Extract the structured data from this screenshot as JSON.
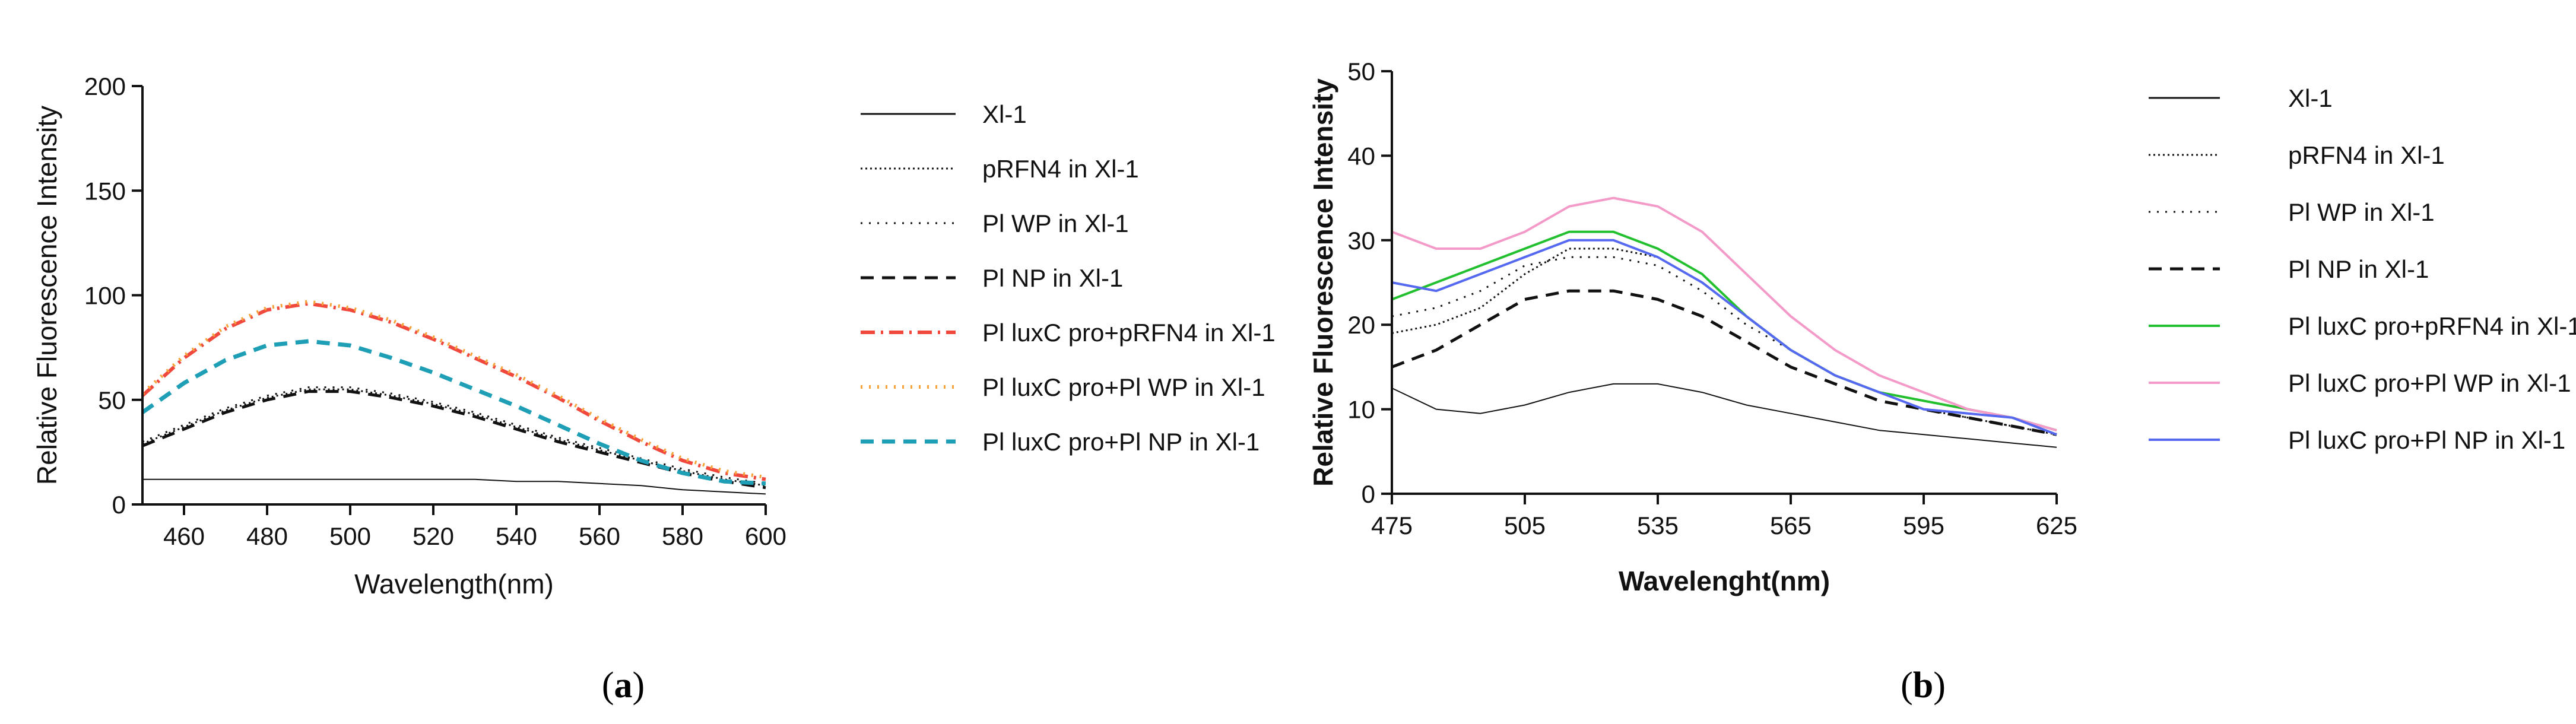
{
  "chart_data": [
    {
      "type": "line",
      "id": "a",
      "caption": {
        "open": "(",
        "letter": "a",
        "close": ")"
      },
      "title": "",
      "xlabel": "Wavelength(nm)",
      "ylabel": "Relative Fluorescence Intensity",
      "xlim": [
        450,
        600
      ],
      "ylim": [
        0,
        200
      ],
      "xticks": [
        460,
        480,
        500,
        520,
        540,
        560,
        580,
        600
      ],
      "yticks": [
        0,
        50,
        100,
        150,
        200
      ],
      "xlabel_bold": false,
      "x": [
        450,
        460,
        470,
        480,
        490,
        500,
        510,
        520,
        530,
        540,
        550,
        560,
        570,
        580,
        590,
        600
      ],
      "series": [
        {
          "name": "Xl-1",
          "color": "#111111",
          "dash": "solid",
          "width": 2,
          "values": [
            12,
            12,
            12,
            12,
            12,
            12,
            12,
            12,
            12,
            11,
            11,
            10,
            9,
            7,
            6,
            5
          ]
        },
        {
          "name": "pRFN4 in Xl-1",
          "color": "#111111",
          "dash": "dense-dot",
          "width": 3,
          "values": [
            29,
            37,
            45,
            51,
            55,
            55,
            52,
            48,
            43,
            37,
            31,
            26,
            21,
            16,
            12,
            9
          ]
        },
        {
          "name": "Pl WP in Xl-1",
          "color": "#111111",
          "dash": "dot",
          "width": 3,
          "values": [
            30,
            38,
            46,
            52,
            56,
            56,
            53,
            49,
            44,
            38,
            32,
            27,
            22,
            17,
            13,
            10
          ]
        },
        {
          "name": "Pl NP in Xl-1",
          "color": "#111111",
          "dash": "dash",
          "width": 5,
          "values": [
            28,
            36,
            44,
            50,
            54,
            54,
            51,
            47,
            42,
            36,
            30,
            25,
            20,
            15,
            11,
            8
          ]
        },
        {
          "name": "Pl luxC pro+pRFN4 in Xl-1",
          "color": "#f0483c",
          "dash": "dashdot",
          "width": 6,
          "values": [
            52,
            70,
            84,
            93,
            96,
            93,
            87,
            79,
            70,
            61,
            51,
            40,
            30,
            21,
            15,
            12
          ]
        },
        {
          "name": "Pl luxC pro+Pl WP in Xl-1",
          "color": "#f5a33a",
          "dash": "dot",
          "width": 6,
          "values": [
            53,
            71,
            85,
            94,
            97,
            94,
            88,
            80,
            71,
            62,
            52,
            41,
            31,
            22,
            16,
            13
          ]
        },
        {
          "name": "Pl luxC pro+Pl NP in Xl-1",
          "color": "#1f9fb6",
          "dash": "dash",
          "width": 7,
          "values": [
            44,
            58,
            69,
            76,
            78,
            76,
            70,
            63,
            55,
            47,
            38,
            29,
            21,
            15,
            11,
            10
          ]
        }
      ]
    },
    {
      "type": "line",
      "id": "b",
      "caption": {
        "open": "(",
        "letter": "b",
        "close": ")"
      },
      "title": "",
      "xlabel": "Wavelenght(nm)",
      "ylabel": "Relative Fluorescence Intensity",
      "xlim": [
        475,
        625
      ],
      "ylim": [
        0,
        50
      ],
      "xticks": [
        475,
        505,
        535,
        565,
        595,
        625
      ],
      "yticks": [
        0,
        10,
        20,
        30,
        40,
        50
      ],
      "xlabel_bold": true,
      "x": [
        475,
        485,
        495,
        505,
        515,
        525,
        535,
        545,
        555,
        565,
        575,
        585,
        595,
        605,
        615,
        625
      ],
      "series": [
        {
          "name": "Xl-1",
          "color": "#111111",
          "dash": "solid",
          "width": 2,
          "values": [
            12.5,
            10,
            9.5,
            10.5,
            12,
            13,
            13,
            12,
            10.5,
            9.5,
            8.5,
            7.5,
            7,
            6.5,
            6,
            5.5
          ]
        },
        {
          "name": "pRFN4 in Xl-1",
          "color": "#111111",
          "dash": "dense-dot",
          "width": 3,
          "values": [
            19,
            20,
            22,
            26,
            29,
            29,
            28,
            25,
            21,
            17,
            14,
            12,
            10,
            9,
            8,
            7
          ]
        },
        {
          "name": "Pl WP in Xl-1",
          "color": "#111111",
          "dash": "dot",
          "width": 3,
          "values": [
            21,
            22,
            24,
            27,
            28,
            28,
            27,
            24,
            20,
            17,
            14,
            12,
            10,
            9,
            8,
            7
          ]
        },
        {
          "name": "Pl NP in Xl-1",
          "color": "#111111",
          "dash": "dash",
          "width": 5,
          "values": [
            15,
            17,
            20,
            23,
            24,
            24,
            23,
            21,
            18,
            15,
            13,
            11,
            10,
            9,
            8,
            7
          ]
        },
        {
          "name": "Pl luxC pro+pRFN4 in Xl-1",
          "color": "#22c02e",
          "dash": "solid",
          "width": 4,
          "values": [
            23,
            25,
            27,
            29,
            31,
            31,
            29,
            26,
            21,
            17,
            14,
            12,
            11,
            10,
            9,
            7.5
          ]
        },
        {
          "name": "Pl luxC pro+Pl WP in Xl-1",
          "color": "#f49ac8",
          "dash": "solid",
          "width": 4,
          "values": [
            31,
            29,
            29,
            31,
            34,
            35,
            34,
            31,
            26,
            21,
            17,
            14,
            12,
            10,
            9,
            7.5
          ]
        },
        {
          "name": "Pl luxC pro+Pl NP in Xl-1",
          "color": "#5468f0",
          "dash": "solid",
          "width": 4,
          "values": [
            25,
            24,
            26,
            28,
            30,
            30,
            28,
            25,
            21,
            17,
            14,
            12,
            10,
            9.5,
            9,
            7
          ]
        }
      ]
    }
  ]
}
